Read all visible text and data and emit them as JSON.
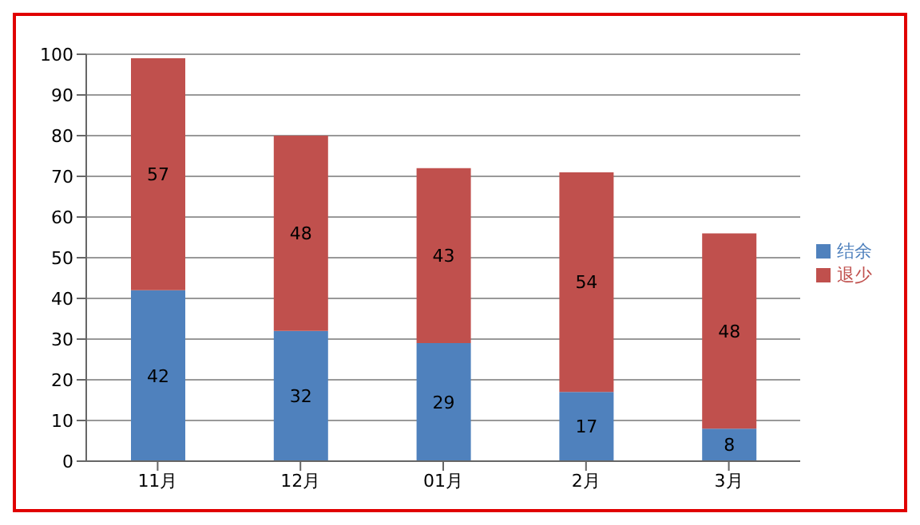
{
  "chart_data": {
    "type": "bar",
    "stacked": true,
    "categories": [
      "11月",
      "12月",
      "01月",
      "2月",
      "3月"
    ],
    "series": [
      {
        "name": "结余",
        "color": "#4f81bd",
        "values": [
          42,
          32,
          29,
          17,
          8
        ]
      },
      {
        "name": "退少",
        "color": "#c0504d",
        "values": [
          57,
          48,
          43,
          54,
          48
        ]
      }
    ],
    "ylim": [
      0,
      100
    ],
    "yticks": [
      0,
      10,
      20,
      30,
      40,
      50,
      60,
      70,
      80,
      90,
      100
    ],
    "grid": "y",
    "legend": "right",
    "data_labels": true
  }
}
